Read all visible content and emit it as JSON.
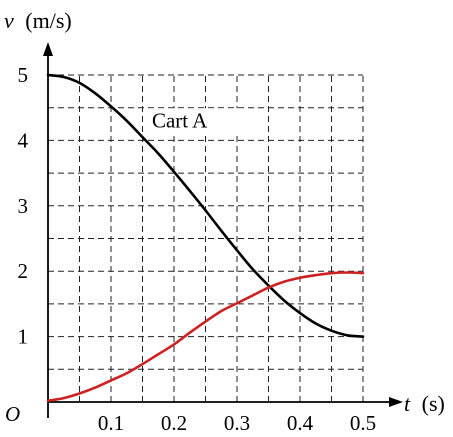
{
  "chart_data": {
    "type": "line",
    "title": "",
    "xlabel_var": "t",
    "xlabel_unit": "(s)",
    "ylabel_var": "v",
    "ylabel_unit": "(m/s)",
    "origin_label": "O",
    "xlim": [
      0,
      0.5
    ],
    "ylim": [
      0,
      5
    ],
    "x_ticks": [
      0.1,
      0.2,
      0.3,
      0.4,
      0.5
    ],
    "x_tick_labels": [
      "0.1",
      "0.2",
      "0.3",
      "0.4",
      "0.5"
    ],
    "y_ticks": [
      1,
      2,
      3,
      4,
      5
    ],
    "y_tick_labels": [
      "1",
      "2",
      "3",
      "4",
      "5"
    ],
    "grid": "dashed",
    "grid_x_step": 0.05,
    "grid_y_step": 0.5,
    "annotations": [
      {
        "text": "Cart A",
        "x": 0.165,
        "y": 4.2
      }
    ],
    "series": [
      {
        "name": "Cart A",
        "color": "#000000",
        "x": [
          0,
          0.025,
          0.05,
          0.075,
          0.1,
          0.125,
          0.15,
          0.175,
          0.2,
          0.225,
          0.25,
          0.275,
          0.3,
          0.325,
          0.35,
          0.375,
          0.4,
          0.425,
          0.45,
          0.475,
          0.5
        ],
        "y": [
          5.0,
          4.97,
          4.88,
          4.72,
          4.52,
          4.3,
          4.05,
          3.8,
          3.52,
          3.23,
          2.93,
          2.62,
          2.32,
          2.03,
          1.78,
          1.55,
          1.36,
          1.2,
          1.09,
          1.02,
          1.0
        ]
      },
      {
        "name": "",
        "color": "#cc2222",
        "x": [
          0,
          0.025,
          0.05,
          0.075,
          0.1,
          0.125,
          0.15,
          0.175,
          0.2,
          0.225,
          0.25,
          0.275,
          0.3,
          0.325,
          0.35,
          0.375,
          0.4,
          0.425,
          0.45,
          0.475,
          0.5
        ],
        "y": [
          0.02,
          0.06,
          0.13,
          0.22,
          0.33,
          0.44,
          0.58,
          0.73,
          0.88,
          1.06,
          1.23,
          1.39,
          1.51,
          1.63,
          1.75,
          1.84,
          1.9,
          1.94,
          1.97,
          1.98,
          1.97
        ]
      }
    ]
  }
}
